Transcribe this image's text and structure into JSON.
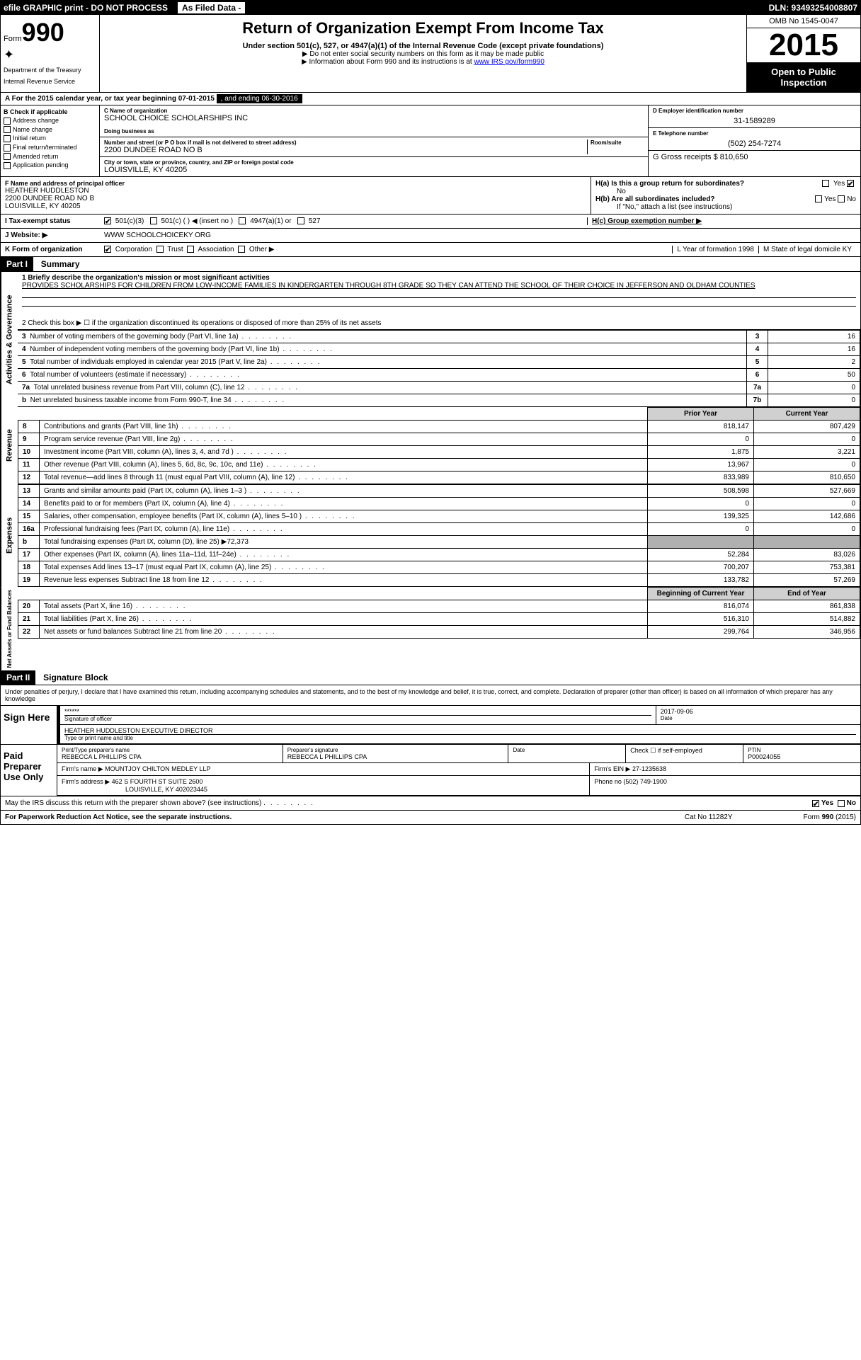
{
  "top_bar": {
    "efile": "efile GRAPHIC print - DO NOT PROCESS",
    "as_filed": "As Filed Data -",
    "dln": "DLN: 93493254008807"
  },
  "header": {
    "form_label": "Form",
    "form_number": "990",
    "dept": "Department of the Treasury",
    "irs": "Internal Revenue Service",
    "title": "Return of Organization Exempt From Income Tax",
    "subtitle": "Under section 501(c), 527, or 4947(a)(1) of the Internal Revenue Code (except private foundations)",
    "note1": "▶ Do not enter social security numbers on this form as it may be made public",
    "note2_pre": "▶ Information about Form 990 and its instructions is at ",
    "note2_link": "www IRS gov/form990",
    "omb": "OMB No 1545-0047",
    "year": "2015",
    "open": "Open to Public Inspection"
  },
  "row_a": {
    "label": "A  For the 2015 calendar year, or tax year beginning 07-01-2015",
    "ending": ", and ending 06-30-2016"
  },
  "section_b": {
    "heading": "B Check if applicable",
    "items": [
      "Address change",
      "Name change",
      "Initial return",
      "Final return/terminated",
      "Amended return",
      "Application pending"
    ]
  },
  "section_c": {
    "name_lbl": "C Name of organization",
    "name": "SCHOOL CHOICE SCHOLARSHIPS INC",
    "dba_lbl": "Doing business as",
    "addr_lbl": "Number and street (or P O  box if mail is not delivered to street address)",
    "room_lbl": "Room/suite",
    "addr": "2200 DUNDEE ROAD NO B",
    "city_lbl": "City or town, state or province, country, and ZIP or foreign postal code",
    "city": "LOUISVILLE, KY  40205"
  },
  "section_d": {
    "lbl": "D Employer identification number",
    "val": "31-1589289"
  },
  "section_e": {
    "lbl": "E Telephone number",
    "val": "(502) 254-7274"
  },
  "section_g": {
    "lbl": "G Gross receipts $ 810,650"
  },
  "section_f": {
    "lbl": "F Name and address of principal officer",
    "name": "HEATHER HUDDLESTON",
    "addr1": "2200 DUNDEE ROAD NO B",
    "addr2": "LOUISVILLE, KY  40205"
  },
  "section_h": {
    "h_a": "H(a) Is this a group return for subordinates?",
    "no": "No",
    "yes": "Yes",
    "h_b": "H(b) Are all subordinates included?",
    "h_b_note": "If \"No,\" attach a list (see instructions)",
    "h_c": "H(c)   Group exemption number ▶"
  },
  "section_i": {
    "lbl": "I  Tax-exempt status",
    "opts": [
      "501(c)(3)",
      "501(c) (  ) ◀ (insert no )",
      "4947(a)(1) or",
      "527"
    ]
  },
  "section_j": {
    "lbl": "J  Website: ▶",
    "val": "WWW SCHOOLCHOICEKY ORG"
  },
  "section_k": {
    "lbl": "K Form of organization",
    "opts": [
      "Corporation",
      "Trust",
      "Association",
      "Other ▶"
    ]
  },
  "section_l": {
    "lbl": "L Year of formation  1998"
  },
  "section_m": {
    "lbl": "M State of legal domicile  KY"
  },
  "part1": {
    "hdr": "Part I",
    "title": "Summary",
    "line1_lbl": "1 Briefly describe the organization's mission or most significant activities",
    "mission": "PROVIDES SCHOLARSHIPS FOR CHILDREN FROM LOW-INCOME FAMILIES IN KINDERGARTEN THROUGH 8TH GRADE SO THEY CAN ATTEND THE SCHOOL OF THEIR CHOICE IN JEFFERSON AND OLDHAM COUNTIES",
    "line2": "2 Check this box ▶ ☐ if the organization discontinued its operations or disposed of more than 25% of its net assets",
    "governance_label": "Activities & Governance",
    "gov_rows": [
      {
        "n": "3",
        "desc": "Number of voting members of the governing body (Part VI, line 1a)",
        "idx": "3",
        "val": "16"
      },
      {
        "n": "4",
        "desc": "Number of independent voting members of the governing body (Part VI, line 1b)",
        "idx": "4",
        "val": "16"
      },
      {
        "n": "5",
        "desc": "Total number of individuals employed in calendar year 2015 (Part V, line 2a)",
        "idx": "5",
        "val": "2"
      },
      {
        "n": "6",
        "desc": "Total number of volunteers (estimate if necessary)",
        "idx": "6",
        "val": "50"
      },
      {
        "n": "7a",
        "desc": "Total unrelated business revenue from Part VIII, column (C), line 12",
        "idx": "7a",
        "val": "0"
      },
      {
        "n": "b",
        "desc": "Net unrelated business taxable income from Form 990-T, line 34",
        "idx": "7b",
        "val": "0"
      }
    ],
    "col_prior": "Prior Year",
    "col_current": "Current Year",
    "revenue_label": "Revenue",
    "rev_rows": [
      {
        "n": "8",
        "desc": "Contributions and grants (Part VIII, line 1h)",
        "prior": "818,147",
        "curr": "807,429"
      },
      {
        "n": "9",
        "desc": "Program service revenue (Part VIII, line 2g)",
        "prior": "0",
        "curr": "0"
      },
      {
        "n": "10",
        "desc": "Investment income (Part VIII, column (A), lines 3, 4, and 7d )",
        "prior": "1,875",
        "curr": "3,221"
      },
      {
        "n": "11",
        "desc": "Other revenue (Part VIII, column (A), lines 5, 6d, 8c, 9c, 10c, and 11e)",
        "prior": "13,967",
        "curr": "0"
      },
      {
        "n": "12",
        "desc": "Total revenue—add lines 8 through 11 (must equal Part VIII, column (A), line 12)",
        "prior": "833,989",
        "curr": "810,650"
      }
    ],
    "expenses_label": "Expenses",
    "exp_rows": [
      {
        "n": "13",
        "desc": "Grants and similar amounts paid (Part IX, column (A), lines 1–3 )",
        "prior": "508,598",
        "curr": "527,669"
      },
      {
        "n": "14",
        "desc": "Benefits paid to or for members (Part IX, column (A), line 4)",
        "prior": "0",
        "curr": "0"
      },
      {
        "n": "15",
        "desc": "Salaries, other compensation, employee benefits (Part IX, column (A), lines 5–10 )",
        "prior": "139,325",
        "curr": "142,686"
      },
      {
        "n": "16a",
        "desc": "Professional fundraising fees (Part IX, column (A), line 11e)",
        "prior": "0",
        "curr": "0"
      },
      {
        "n": "b",
        "desc": "Total fundraising expenses (Part IX, column (D), line 25) ▶72,373",
        "prior": "",
        "curr": "",
        "gray": true
      },
      {
        "n": "17",
        "desc": "Other expenses (Part IX, column (A), lines 11a–11d, 11f–24e)",
        "prior": "52,284",
        "curr": "83,026"
      },
      {
        "n": "18",
        "desc": "Total expenses Add lines 13–17 (must equal Part IX, column (A), line 25)",
        "prior": "700,207",
        "curr": "753,381"
      },
      {
        "n": "19",
        "desc": "Revenue less expenses Subtract line 18 from line 12",
        "prior": "133,782",
        "curr": "57,269"
      }
    ],
    "net_label": "Net Assets or Fund Balances",
    "col_begin": "Beginning of Current Year",
    "col_end": "End of Year",
    "net_rows": [
      {
        "n": "20",
        "desc": "Total assets (Part X, line 16)",
        "prior": "816,074",
        "curr": "861,838"
      },
      {
        "n": "21",
        "desc": "Total liabilities (Part X, line 26)",
        "prior": "516,310",
        "curr": "514,882"
      },
      {
        "n": "22",
        "desc": "Net assets or fund balances Subtract line 21 from line 20",
        "prior": "299,764",
        "curr": "346,956"
      }
    ]
  },
  "part2": {
    "hdr": "Part II",
    "title": "Signature Block",
    "decl": "Under penalties of perjury, I declare that I have examined this return, including accompanying schedules and statements, and to the best of my knowledge and belief, it is true, correct, and complete. Declaration of preparer (other than officer) is based on all information of which preparer has any knowledge",
    "sign_here": "Sign Here",
    "sig_stars": "******",
    "sig_officer_lbl": "Signature of officer",
    "sig_date": "2017-09-06",
    "date_lbl": "Date",
    "officer_name": "HEATHER HUDDLESTON EXECUTIVE DIRECTOR",
    "officer_lbl": "Type or print name and title",
    "paid": "Paid Preparer Use Only",
    "prep_name_lbl": "Print/Type preparer's name",
    "prep_name": "REBECCA L PHILLIPS CPA",
    "prep_sig_lbl": "Preparer's signature",
    "prep_sig": "REBECCA L PHILLIPS CPA",
    "prep_date_lbl": "Date",
    "self_emp": "Check ☐ if self-employed",
    "ptin_lbl": "PTIN",
    "ptin": "P00024055",
    "firm_name_lbl": "Firm's name    ▶",
    "firm_name": "MOUNTJOY CHILTON MEDLEY LLP",
    "firm_ein_lbl": "Firm's EIN ▶",
    "firm_ein": "27-1235638",
    "firm_addr_lbl": "Firm's address ▶",
    "firm_addr": "462 S FOURTH ST SUITE 2600",
    "firm_city": "LOUISVILLE, KY  402023445",
    "phone_lbl": "Phone no",
    "phone": "(502) 749-1900",
    "may_irs": "May the IRS discuss this return with the preparer shown above? (see instructions)",
    "yes": "Yes",
    "no": "No"
  },
  "footer": {
    "left": "For Paperwork Reduction Act Notice, see the separate instructions.",
    "mid": "Cat No 11282Y",
    "right": "Form 990 (2015)"
  }
}
